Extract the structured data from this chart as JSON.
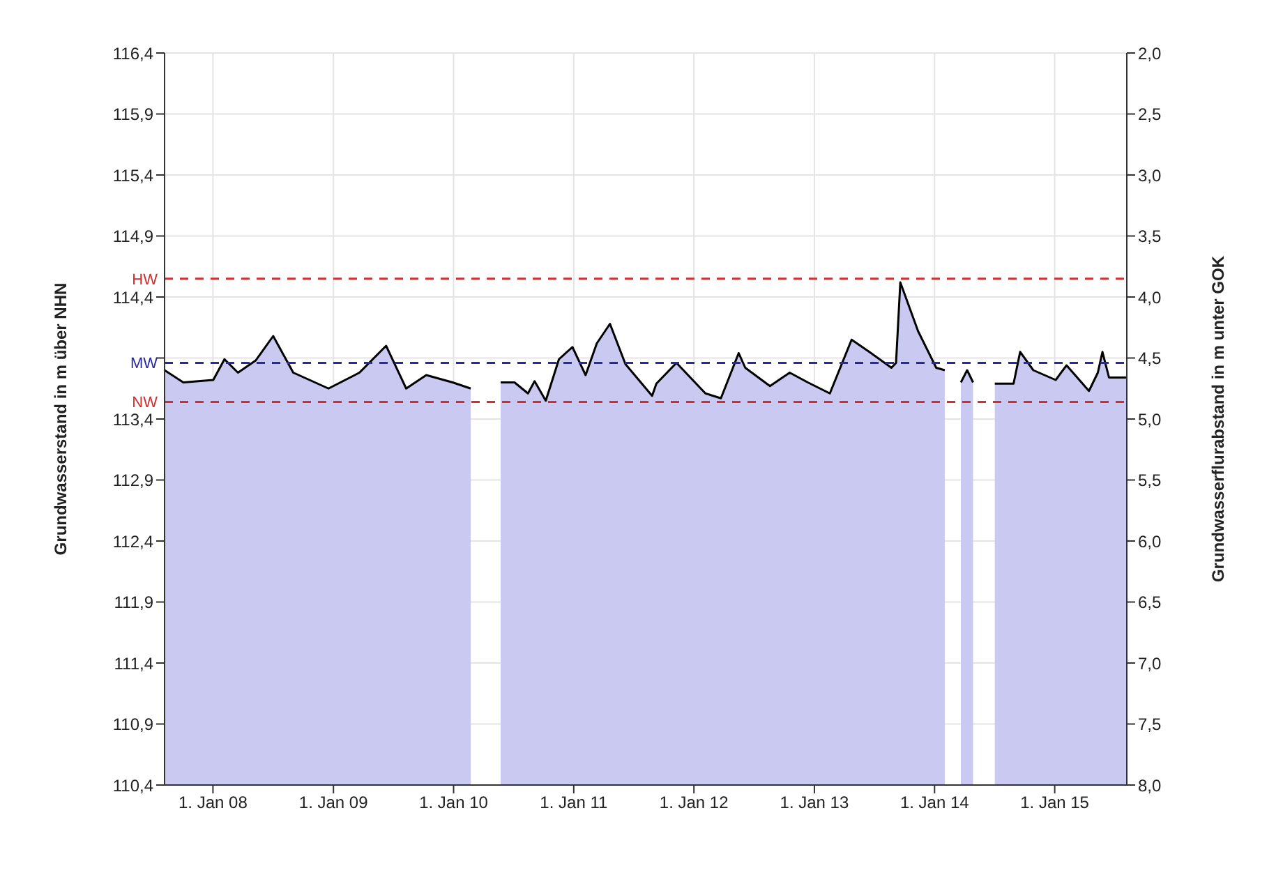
{
  "chart_data": {
    "type": "area",
    "xlabel": null,
    "ylabel": "Grundwasserstand in m über NHN",
    "y2label": "Grundwasserflurabstand in m unter GOK",
    "x": [
      "2007-08-07",
      "2007-10-03",
      "2008-01-02",
      "2008-02-05",
      "2008-03-17",
      "2008-05-10",
      "2008-07-02",
      "2008-09-01",
      "2008-12-17",
      "2009-03-21",
      "2009-06-10",
      "2009-08-10",
      "2009-10-10",
      "2009-12-29",
      "2010-02-22",
      "2010-04-01",
      "2010-05-24",
      "2010-07-05",
      "2010-08-15",
      "2010-09-04",
      "2010-10-08",
      "2010-11-17",
      "2010-12-28",
      "2011-02-06",
      "2011-03-12",
      "2011-04-21",
      "2011-06-07",
      "2011-08-27",
      "2011-09-09",
      "2011-11-09",
      "2012-02-05",
      "2012-03-23",
      "2012-05-16",
      "2012-06-05",
      "2012-08-19",
      "2012-10-18",
      "2012-12-12",
      "2013-02-17",
      "2013-04-24",
      "2013-06-17",
      "2013-08-23",
      "2013-09-06",
      "2013-09-19",
      "2013-11-12",
      "2014-01-06",
      "2014-02-01",
      "2014-02-15",
      "2014-03-22",
      "2014-04-10",
      "2014-04-28",
      "2014-05-20",
      "2014-07-03",
      "2014-08-29",
      "2014-09-18",
      "2014-10-28",
      "2015-01-04",
      "2015-02-06",
      "2015-04-15",
      "2015-05-12",
      "2015-05-26",
      "2015-06-15",
      "2015-08-08"
    ],
    "series": [
      {
        "color": "#c9c9f2",
        "values": [
          113.8,
          113.7,
          113.72,
          113.89,
          113.78,
          113.88,
          114.08,
          113.78,
          113.65,
          113.78,
          114.0,
          113.65,
          113.76,
          113.7,
          113.65,
          null,
          113.7,
          113.7,
          113.61,
          113.71,
          113.55,
          113.89,
          113.99,
          113.76,
          114.02,
          114.18,
          113.85,
          113.59,
          113.69,
          113.86,
          113.61,
          113.57,
          113.94,
          113.82,
          113.67,
          113.78,
          113.7,
          113.61,
          114.05,
          113.95,
          113.82,
          113.86,
          114.52,
          114.12,
          113.82,
          113.8,
          null,
          113.7,
          113.8,
          113.7,
          null,
          113.69,
          113.69,
          113.95,
          113.8,
          113.72,
          113.84,
          113.63,
          113.78,
          113.95,
          113.74,
          113.74
        ]
      }
    ],
    "xlim": [
      "2007-08-07",
      "2015-08-08"
    ],
    "xticks": [
      {
        "value": "2008-01-01",
        "label": "1. Jan 08"
      },
      {
        "value": "2009-01-01",
        "label": "1. Jan 09"
      },
      {
        "value": "2010-01-01",
        "label": "1. Jan 10"
      },
      {
        "value": "2011-01-01",
        "label": "1. Jan 11"
      },
      {
        "value": "2012-01-01",
        "label": "1. Jan 12"
      },
      {
        "value": "2013-01-01",
        "label": "1. Jan 13"
      },
      {
        "value": "2014-01-01",
        "label": "1. Jan 14"
      },
      {
        "value": "2015-01-01",
        "label": "1. Jan 15"
      }
    ],
    "ylim": [
      110.4,
      116.4
    ],
    "yticks": [
      {
        "value": 110.4,
        "label": "110,4"
      },
      {
        "value": 110.9,
        "label": "110,9"
      },
      {
        "value": 111.4,
        "label": "111,4"
      },
      {
        "value": 111.9,
        "label": "111,9"
      },
      {
        "value": 112.4,
        "label": "112,4"
      },
      {
        "value": 112.9,
        "label": "112,9"
      },
      {
        "value": 113.4,
        "label": "113,4"
      },
      {
        "value": 113.9,
        "label": null
      },
      {
        "value": 114.4,
        "label": "114,4"
      },
      {
        "value": 114.9,
        "label": "114,9"
      },
      {
        "value": 115.4,
        "label": "115,4"
      },
      {
        "value": 115.9,
        "label": "115,9"
      },
      {
        "value": 116.4,
        "label": "116,4"
      }
    ],
    "y2lim": [
      8.0,
      2.0
    ],
    "y2ticks": [
      {
        "value": 2.0,
        "label": "2,0"
      },
      {
        "value": 2.5,
        "label": "2,5"
      },
      {
        "value": 3.0,
        "label": "3,0"
      },
      {
        "value": 3.5,
        "label": "3,5"
      },
      {
        "value": 4.0,
        "label": "4,0"
      },
      {
        "value": 4.5,
        "label": "4,5"
      },
      {
        "value": 5.0,
        "label": "5,0"
      },
      {
        "value": 5.5,
        "label": "5,5"
      },
      {
        "value": 6.0,
        "label": "6,0"
      },
      {
        "value": 6.5,
        "label": "6,5"
      },
      {
        "value": 7.0,
        "label": "7,0"
      },
      {
        "value": 7.5,
        "label": "7,5"
      },
      {
        "value": 8.0,
        "label": "8,0"
      }
    ],
    "ref_lines": [
      {
        "axis": "y",
        "value": 114.55,
        "label": "HW",
        "color": "#d03030",
        "line_style": "dashed"
      },
      {
        "axis": "y",
        "value": 113.86,
        "label": "MW",
        "color": "#2a2aa0",
        "line_style": "dashed"
      },
      {
        "axis": "y",
        "value": 113.54,
        "label": "NW",
        "color": "#d03030",
        "line_style": "dashed"
      }
    ],
    "grid": true
  }
}
